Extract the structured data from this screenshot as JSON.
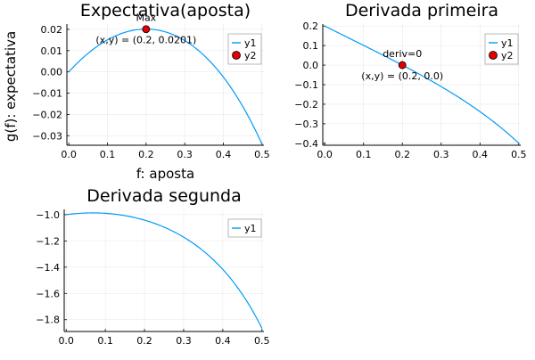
{
  "chart_data": [
    {
      "type": "line",
      "title": "Expectativa(aposta)",
      "xlabel": "f: aposta",
      "ylabel": "g(f): expectativa",
      "xlim": [
        -0.005,
        0.505
      ],
      "ylim": [
        -0.0345,
        0.0225
      ],
      "xticks": [
        0.0,
        0.1,
        0.2,
        0.3,
        0.4,
        0.5
      ],
      "xtick_labels": [
        "0.0",
        "0.1",
        "0.2",
        "0.3",
        "0.4",
        "0.5"
      ],
      "yticks": [
        0.02,
        0.01,
        0.0,
        -0.01,
        -0.02,
        -0.03
      ],
      "ytick_labels": [
        "0.02",
        "0.01",
        "0.00",
        "−0.01",
        "−0.02",
        "−0.03"
      ],
      "grid": true,
      "legend_position": "top-right",
      "series": [
        {
          "name": "y1",
          "kind": "line",
          "color": "#009AFA",
          "function": "g",
          "x_range": [
            0.0,
            0.5
          ]
        },
        {
          "name": "y2",
          "kind": "scatter",
          "color": "#E30000",
          "points": [
            [
              0.2,
              0.0201
            ]
          ]
        }
      ],
      "annotations": [
        {
          "text": "Max",
          "x": 0.2,
          "y": 0.0201,
          "position": "above"
        },
        {
          "text": "(x,y) = (0.2, 0.0201)",
          "x": 0.2,
          "y": 0.0201,
          "position": "below"
        }
      ]
    },
    {
      "type": "line",
      "title": "Derivada primeira",
      "xlabel": "",
      "ylabel": "",
      "xlim": [
        -0.005,
        0.505
      ],
      "ylim": [
        -0.41,
        0.21
      ],
      "xticks": [
        0.0,
        0.1,
        0.2,
        0.3,
        0.4,
        0.5
      ],
      "xtick_labels": [
        "0.0",
        "0.1",
        "0.2",
        "0.3",
        "0.4",
        "0.5"
      ],
      "yticks": [
        0.2,
        0.1,
        0.0,
        -0.1,
        -0.2,
        -0.3,
        -0.4
      ],
      "ytick_labels": [
        "0.2",
        "0.1",
        "0.0",
        "−0.1",
        "−0.2",
        "−0.3",
        "−0.4"
      ],
      "grid": true,
      "legend_position": "top-right",
      "series": [
        {
          "name": "y1",
          "kind": "line",
          "color": "#009AFA",
          "function": "dg",
          "x_range": [
            0.0,
            0.5
          ]
        },
        {
          "name": "y2",
          "kind": "scatter",
          "color": "#E30000",
          "points": [
            [
              0.2,
              0.0
            ]
          ]
        }
      ],
      "annotations": [
        {
          "text": "deriv=0",
          "x": 0.2,
          "y": 0.0,
          "position": "above"
        },
        {
          "text": "(x,y) = (0.2, 0.0)",
          "x": 0.2,
          "y": 0.0,
          "position": "below"
        }
      ]
    },
    {
      "type": "line",
      "title": "Derivada segunda",
      "xlabel": "",
      "ylabel": "",
      "xlim": [
        -0.005,
        0.505
      ],
      "ylim": [
        -1.89,
        -0.96
      ],
      "xticks": [
        0.0,
        0.1,
        0.2,
        0.3,
        0.4,
        0.5
      ],
      "xtick_labels": [
        "0.0",
        "0.1",
        "0.2",
        "0.3",
        "0.4",
        "0.5"
      ],
      "yticks": [
        -1.0,
        -1.2,
        -1.4,
        -1.6,
        -1.8
      ],
      "ytick_labels": [
        "−1.0",
        "−1.2",
        "−1.4",
        "−1.6",
        "−1.8"
      ],
      "grid": true,
      "legend_position": "top-right",
      "series": [
        {
          "name": "y1",
          "kind": "line",
          "color": "#009AFA",
          "function": "d2g",
          "x_range": [
            0.0,
            0.5
          ]
        }
      ],
      "annotations": []
    }
  ]
}
